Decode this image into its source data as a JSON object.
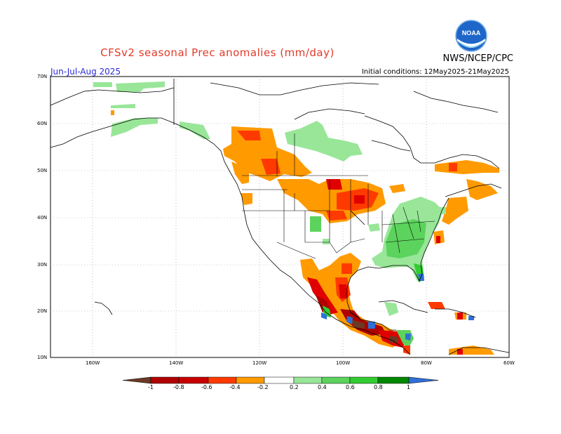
{
  "title": "CFSv2 seasonal Prec anomalies (mm/day)",
  "agency": "NWS/NCEP/CPC",
  "logo_text": "NOAA",
  "season": "Jun-Jul-Aug 2025",
  "initial_conditions": "Initial conditions: 12May2025-21May2025",
  "lat_labels": [
    "70N",
    "60N",
    "50N",
    "40N",
    "30N",
    "20N",
    "10N"
  ],
  "lon_labels": [
    "160W",
    "140W",
    "120W",
    "100W",
    "80W",
    "60W"
  ],
  "colorbar_ticks": [
    "-1",
    "-0.8",
    "-0.6",
    "-0.4",
    "-0.2",
    "0.2",
    "0.4",
    "0.6",
    "0.8",
    "1"
  ],
  "colors": {
    "dark_brown": "#6b3a24",
    "dark_red": "#b00000",
    "red": "#e00000",
    "red_orange": "#ff3a00",
    "orange": "#ff9a00",
    "light_green": "#99e699",
    "green2": "#5cd35c",
    "green3": "#33cc33",
    "green4": "#119911",
    "dark_green": "#008800",
    "blue": "#2f6fd8",
    "title_red": "#e23a2a",
    "season_blue": "#2a2ad8"
  }
}
